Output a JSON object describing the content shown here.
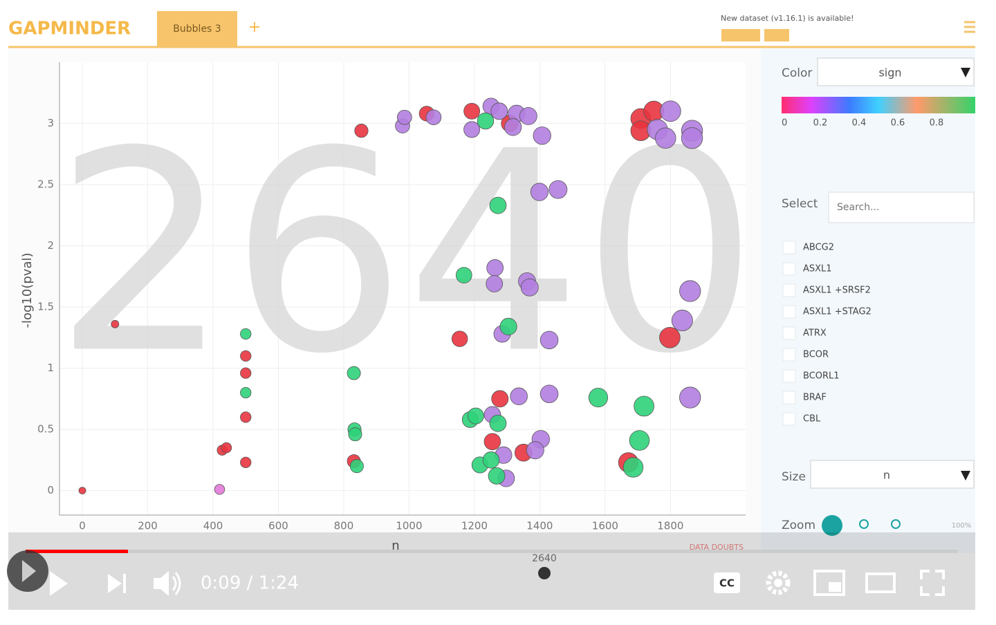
{
  "header": {
    "logo": "GAPMINDER",
    "tab": "Bubbles 3",
    "add_tab": "+",
    "notice": "New dataset (v1.16.1) is available!"
  },
  "chart_data": {
    "type": "scatter",
    "watermark": "2640",
    "xlabel": "n",
    "ylabel": "-log10(pval)",
    "xlim": [
      -70,
      2030
    ],
    "ylim": [
      -0.2,
      3.5
    ],
    "xticks": [
      0,
      200,
      400,
      600,
      800,
      1000,
      1200,
      1400,
      1600,
      1800
    ],
    "yticks": [
      0,
      0.5,
      1,
      1.5,
      2,
      2.5,
      3
    ],
    "grid": true,
    "series": [
      {
        "color": "#e8343f",
        "x": [
          0,
          100,
          500,
          500,
          500,
          500,
          428,
          441,
          854,
          1054,
          1192,
          1308,
          1155,
          1278,
          1255,
          1350,
          831,
          1709,
          1749,
          1709,
          1798,
          1671
        ],
        "values": [
          0,
          1.36,
          1.1,
          0.96,
          0.6,
          0.23,
          0.33,
          0.35,
          2.94,
          3.08,
          3.1,
          3.0,
          1.24,
          0.75,
          0.4,
          0.31,
          0.24,
          3.04,
          3.1,
          2.94,
          1.25,
          0.23
        ]
      },
      {
        "color": "#b27ee0",
        "x": [
          980,
          986,
          1075,
          1251,
          1276,
          1329,
          1365,
          1192,
          1318,
          1407,
          1399,
          1456,
          1263,
          1261,
          1361,
          1369,
          1285,
          1429,
          1336,
          1429,
          1255,
          1403,
          1386,
          1289,
          1297,
          1800,
          1760,
          1785,
          1866,
          1866,
          1860,
          1836,
          1860
        ],
        "values": [
          2.98,
          3.05,
          3.05,
          3.14,
          3.1,
          3.08,
          3.06,
          2.95,
          2.97,
          2.9,
          2.44,
          2.46,
          1.82,
          1.69,
          1.71,
          1.66,
          1.28,
          1.23,
          0.77,
          0.79,
          0.62,
          0.42,
          0.33,
          0.29,
          0.1,
          3.1,
          2.95,
          2.88,
          2.94,
          2.88,
          1.63,
          1.39,
          0.76
        ]
      },
      {
        "color": "#e27ad9",
        "x": [
          420
        ],
        "values": [
          0.01
        ]
      },
      {
        "color": "#2fd17a",
        "x": [
          500,
          500,
          831,
          833,
          835,
          840,
          1234,
          1272,
          1168,
          1304,
          1579,
          1719,
          1705,
          1686,
          1187,
          1204,
          1272,
          1217,
          1251,
          1268
        ],
        "values": [
          1.28,
          0.8,
          0.96,
          0.5,
          0.46,
          0.2,
          3.02,
          2.33,
          1.76,
          1.34,
          0.76,
          0.69,
          0.41,
          0.19,
          0.58,
          0.61,
          0.55,
          0.21,
          0.25,
          0.12
        ]
      }
    ],
    "data_doubts": "DATA DOUBTS"
  },
  "panel": {
    "color_label": "Color",
    "color_value": "sign",
    "colorbar_ticks": [
      0,
      0.2,
      0.4,
      0.6,
      0.8
    ],
    "select_label": "Select",
    "search": "Search...",
    "items": [
      "ABCG2",
      "ASXL1",
      "ASXL1 +SRSF2",
      "ASXL1 +STAG2",
      "ATRX",
      "BCOR",
      "BCORL1",
      "BRAF",
      "CBL"
    ],
    "size_label": "Size",
    "size_value": "n",
    "zoom_label": "Zoom",
    "zoom_value": "100%"
  },
  "player": {
    "time": "0:09 / 1:24",
    "cc": "CC"
  }
}
